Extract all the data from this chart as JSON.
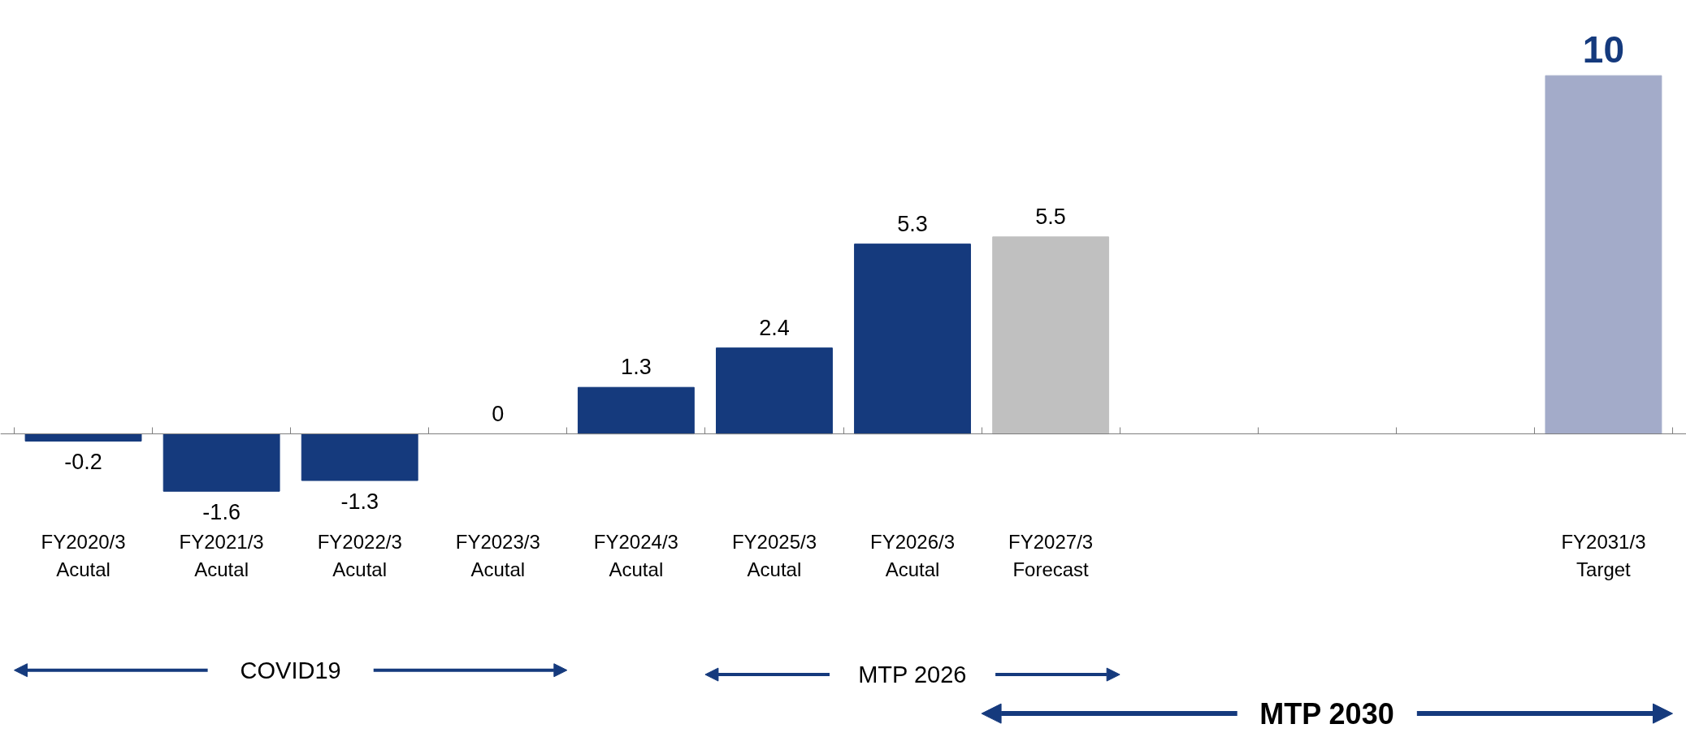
{
  "chart_data": {
    "type": "bar",
    "categories": [
      "FY2020/3\nAcutal",
      "FY2021/3\nAcutal",
      "FY2022/3\nAcutal",
      "FY2023/3\nAcutal",
      "FY2024/3\nAcutal",
      "FY2025/3\nAcutal",
      "FY2026/3\nAcutal",
      "FY2027/3\nForecast",
      null,
      null,
      null,
      "FY2031/3\nTarget"
    ],
    "values": [
      -0.2,
      -1.6,
      -1.3,
      0,
      1.3,
      2.4,
      5.3,
      5.5,
      null,
      null,
      null,
      10
    ],
    "colors": [
      "#153a7d",
      "#153a7d",
      "#153a7d",
      "#153a7d",
      "#153a7d",
      "#153a7d",
      "#153a7d",
      "#c0c0c0",
      null,
      null,
      null,
      "#a3abc9"
    ],
    "data_labels": true,
    "annotations": [
      "COVID19",
      "MTP 2026",
      "MTP 2030"
    ],
    "grid": false
  }
}
